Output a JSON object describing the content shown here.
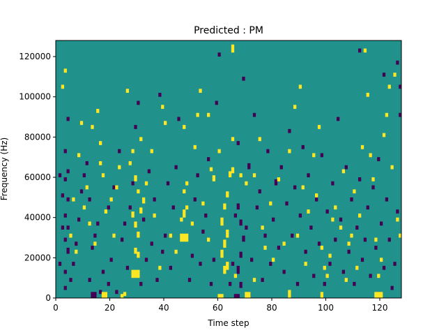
{
  "chart_data": {
    "type": "heatmap",
    "title": "Predicted : PM",
    "xlabel": "Time step",
    "ylabel": "Frequency (Hz)",
    "xlim": [
      0,
      128
    ],
    "ylim": [
      0,
      128000
    ],
    "x_ticks": [
      0,
      20,
      40,
      60,
      80,
      100,
      120
    ],
    "y_ticks": [
      0,
      20000,
      40000,
      60000,
      80000,
      100000,
      120000
    ],
    "n_time_steps": 128,
    "n_freq_bins": 128,
    "colors": {
      "background": "#21918c",
      "low": "#440154",
      "high": "#fde725"
    },
    "high_cells": [
      [
        17,
        0,
        3
      ],
      [
        18,
        0,
        3
      ],
      [
        24,
        0,
        2
      ],
      [
        25,
        1,
        2
      ],
      [
        60,
        0,
        2
      ],
      [
        61,
        0,
        2
      ],
      [
        70,
        0,
        3
      ],
      [
        71,
        0,
        3
      ],
      [
        86,
        0,
        4
      ],
      [
        98,
        0,
        3
      ],
      [
        118,
        0,
        3
      ],
      [
        119,
        0,
        3
      ],
      [
        120,
        0,
        3
      ],
      [
        28,
        10,
        4
      ],
      [
        29,
        10,
        4
      ],
      [
        30,
        10,
        4
      ],
      [
        30,
        20,
        3
      ],
      [
        29,
        22,
        3
      ],
      [
        30,
        30,
        3
      ],
      [
        29,
        35,
        3
      ],
      [
        28,
        40,
        3
      ],
      [
        31,
        42,
        3
      ],
      [
        32,
        47,
        3
      ],
      [
        30,
        52,
        2
      ],
      [
        29,
        58,
        3
      ],
      [
        46,
        28,
        4
      ],
      [
        47,
        28,
        4
      ],
      [
        48,
        28,
        4
      ],
      [
        46,
        38,
        2
      ],
      [
        47,
        40,
        4
      ],
      [
        48,
        44,
        2
      ],
      [
        47,
        52,
        2
      ],
      [
        48,
        56,
        2
      ],
      [
        62,
        12,
        4
      ],
      [
        63,
        14,
        4
      ],
      [
        61,
        20,
        4
      ],
      [
        62,
        25,
        4
      ],
      [
        63,
        30,
        4
      ],
      [
        61,
        36,
        4
      ],
      [
        62,
        44,
        3
      ],
      [
        63,
        50,
        3
      ],
      [
        57,
        63,
        2
      ],
      [
        58,
        58,
        3
      ],
      [
        64,
        60,
        3
      ],
      [
        65,
        62,
        3
      ],
      [
        70,
        56,
        2
      ],
      [
        17,
        60,
        2
      ],
      [
        18,
        42,
        2
      ],
      [
        8,
        70,
        2
      ],
      [
        9,
        86,
        2
      ],
      [
        13,
        84,
        2
      ],
      [
        15,
        92,
        2
      ],
      [
        16,
        76,
        2
      ],
      [
        22,
        54,
        2
      ],
      [
        23,
        64,
        2
      ],
      [
        27,
        66,
        2
      ],
      [
        28,
        72,
        2
      ],
      [
        31,
        78,
        2
      ],
      [
        35,
        72,
        2
      ],
      [
        39,
        94,
        2
      ],
      [
        40,
        86,
        2
      ],
      [
        47,
        84,
        2
      ],
      [
        51,
        74,
        2
      ],
      [
        52,
        90,
        2
      ],
      [
        53,
        102,
        2
      ],
      [
        56,
        90,
        2
      ],
      [
        60,
        72,
        2
      ],
      [
        65,
        122,
        4
      ],
      [
        65,
        78,
        2
      ],
      [
        68,
        60,
        2
      ],
      [
        73,
        60,
        2
      ],
      [
        75,
        78,
        2
      ],
      [
        82,
        58,
        2
      ],
      [
        86,
        72,
        2
      ],
      [
        88,
        94,
        2
      ],
      [
        90,
        104,
        2
      ],
      [
        91,
        54,
        2
      ],
      [
        95,
        70,
        2
      ],
      [
        97,
        84,
        2
      ],
      [
        98,
        24,
        2
      ],
      [
        99,
        14,
        2
      ],
      [
        101,
        20,
        2
      ],
      [
        102,
        38,
        2
      ],
      [
        105,
        34,
        2
      ],
      [
        107,
        8,
        2
      ],
      [
        109,
        30,
        2
      ],
      [
        110,
        52,
        2
      ],
      [
        112,
        40,
        2
      ],
      [
        113,
        74,
        2
      ],
      [
        114,
        122,
        2
      ],
      [
        115,
        100,
        2
      ],
      [
        116,
        70,
        2
      ],
      [
        117,
        58,
        2
      ],
      [
        118,
        28,
        2
      ],
      [
        119,
        10,
        2
      ],
      [
        120,
        18,
        2
      ],
      [
        121,
        80,
        2
      ],
      [
        122,
        90,
        2
      ],
      [
        123,
        104,
        2
      ],
      [
        124,
        64,
        2
      ],
      [
        125,
        110,
        2
      ],
      [
        126,
        38,
        2
      ],
      [
        127,
        30,
        2
      ],
      [
        2,
        104,
        2
      ],
      [
        3,
        112,
        2
      ],
      [
        5,
        30,
        2
      ],
      [
        6,
        48,
        2
      ],
      [
        7,
        22,
        2
      ],
      [
        10,
        44,
        2
      ],
      [
        11,
        54,
        2
      ],
      [
        12,
        36,
        2
      ],
      [
        14,
        26,
        2
      ],
      [
        16,
        66,
        2
      ],
      [
        20,
        48,
        2
      ],
      [
        21,
        30,
        2
      ],
      [
        26,
        102,
        2
      ],
      [
        33,
        56,
        2
      ],
      [
        36,
        40,
        2
      ],
      [
        38,
        14,
        2
      ],
      [
        42,
        30,
        2
      ],
      [
        44,
        22,
        2
      ],
      [
        50,
        36,
        2
      ],
      [
        54,
        46,
        2
      ],
      [
        56,
        28,
        2
      ],
      [
        66,
        10,
        2
      ],
      [
        76,
        34,
        2
      ],
      [
        80,
        18,
        2
      ],
      [
        84,
        26,
        2
      ],
      [
        89,
        30,
        2
      ],
      [
        93,
        42,
        2
      ],
      [
        96,
        50,
        2
      ],
      [
        100,
        10,
        2
      ],
      [
        103,
        44,
        2
      ],
      [
        106,
        62,
        2
      ],
      [
        108,
        26,
        2
      ],
      [
        111,
        14,
        2
      ],
      [
        73,
        8,
        2
      ],
      [
        77,
        24,
        2
      ],
      [
        79,
        46,
        2
      ],
      [
        92,
        16,
        2
      ]
    ],
    "low_cells": [
      [
        13,
        0,
        3
      ],
      [
        14,
        0,
        3
      ],
      [
        66,
        0,
        2
      ],
      [
        67,
        0,
        2
      ],
      [
        68,
        5,
        3
      ],
      [
        67,
        12,
        4
      ],
      [
        68,
        20,
        3
      ],
      [
        69,
        28,
        3
      ],
      [
        68,
        36,
        3
      ],
      [
        67,
        44,
        3
      ],
      [
        3,
        4,
        2
      ],
      [
        3,
        12,
        2
      ],
      [
        4,
        22,
        3
      ],
      [
        3,
        28,
        2
      ],
      [
        4,
        34,
        2
      ],
      [
        3,
        40,
        2
      ],
      [
        4,
        48,
        2
      ],
      [
        3,
        58,
        2
      ],
      [
        4,
        62,
        2
      ],
      [
        3,
        72,
        2
      ],
      [
        4,
        88,
        2
      ],
      [
        5,
        8,
        2
      ],
      [
        6,
        16,
        2
      ],
      [
        7,
        26,
        2
      ],
      [
        8,
        38,
        2
      ],
      [
        9,
        52,
        2
      ],
      [
        10,
        60,
        2
      ],
      [
        11,
        66,
        2
      ],
      [
        12,
        8,
        2
      ],
      [
        12,
        48,
        2
      ],
      [
        13,
        24,
        2
      ],
      [
        14,
        30,
        2
      ],
      [
        15,
        36,
        2
      ],
      [
        16,
        2,
        2
      ],
      [
        17,
        12,
        2
      ],
      [
        19,
        6,
        2
      ],
      [
        19,
        44,
        2
      ],
      [
        20,
        18,
        2
      ],
      [
        21,
        54,
        2
      ],
      [
        22,
        2,
        2
      ],
      [
        23,
        72,
        2
      ],
      [
        24,
        28,
        2
      ],
      [
        25,
        36,
        2
      ],
      [
        26,
        14,
        2
      ],
      [
        27,
        44,
        2
      ],
      [
        28,
        56,
        2
      ],
      [
        29,
        84,
        2
      ],
      [
        30,
        96,
        2
      ],
      [
        31,
        6,
        2
      ],
      [
        32,
        38,
        2
      ],
      [
        33,
        18,
        2
      ],
      [
        34,
        62,
        2
      ],
      [
        35,
        26,
        2
      ],
      [
        36,
        48,
        2
      ],
      [
        37,
        8,
        2
      ],
      [
        38,
        100,
        2
      ],
      [
        39,
        22,
        2
      ],
      [
        40,
        30,
        2
      ],
      [
        41,
        56,
        2
      ],
      [
        42,
        14,
        2
      ],
      [
        43,
        44,
        2
      ],
      [
        44,
        64,
        2
      ],
      [
        45,
        88,
        2
      ],
      [
        49,
        8,
        2
      ],
      [
        50,
        20,
        2
      ],
      [
        51,
        48,
        2
      ],
      [
        52,
        60,
        2
      ],
      [
        53,
        16,
        2
      ],
      [
        54,
        32,
        2
      ],
      [
        55,
        40,
        2
      ],
      [
        56,
        68,
        2
      ],
      [
        57,
        6,
        2
      ],
      [
        58,
        18,
        2
      ],
      [
        59,
        96,
        2
      ],
      [
        60,
        120,
        2
      ],
      [
        64,
        6,
        2
      ],
      [
        65,
        16,
        2
      ],
      [
        66,
        40,
        2
      ],
      [
        67,
        76,
        2
      ],
      [
        69,
        108,
        2
      ],
      [
        70,
        34,
        2
      ],
      [
        71,
        64,
        3
      ],
      [
        72,
        18,
        2
      ],
      [
        73,
        90,
        2
      ],
      [
        74,
        44,
        2
      ],
      [
        75,
        52,
        2
      ],
      [
        76,
        8,
        2
      ],
      [
        77,
        30,
        2
      ],
      [
        78,
        72,
        2
      ],
      [
        79,
        16,
        2
      ],
      [
        80,
        38,
        2
      ],
      [
        81,
        56,
        3
      ],
      [
        82,
        24,
        2
      ],
      [
        83,
        64,
        2
      ],
      [
        84,
        12,
        2
      ],
      [
        85,
        46,
        2
      ],
      [
        86,
        82,
        2
      ],
      [
        87,
        30,
        2
      ],
      [
        88,
        54,
        2
      ],
      [
        89,
        6,
        2
      ],
      [
        90,
        40,
        2
      ],
      [
        91,
        74,
        2
      ],
      [
        92,
        22,
        2
      ],
      [
        93,
        60,
        2
      ],
      [
        94,
        34,
        2
      ],
      [
        95,
        10,
        2
      ],
      [
        96,
        48,
        2
      ],
      [
        97,
        26,
        2
      ],
      [
        98,
        70,
        2
      ],
      [
        99,
        6,
        2
      ],
      [
        100,
        42,
        2
      ],
      [
        101,
        16,
        2
      ],
      [
        102,
        56,
        2
      ],
      [
        103,
        28,
        2
      ],
      [
        104,
        88,
        2
      ],
      [
        105,
        38,
        2
      ],
      [
        106,
        12,
        2
      ],
      [
        107,
        64,
        2
      ],
      [
        108,
        22,
        2
      ],
      [
        109,
        48,
        2
      ],
      [
        110,
        6,
        2
      ],
      [
        111,
        34,
        2
      ],
      [
        112,
        58,
        2
      ],
      [
        113,
        18,
        2
      ],
      [
        114,
        28,
        2
      ],
      [
        115,
        44,
        2
      ],
      [
        116,
        10,
        2
      ],
      [
        117,
        54,
        2
      ],
      [
        118,
        24,
        2
      ],
      [
        119,
        68,
        2
      ],
      [
        120,
        36,
        2
      ],
      [
        121,
        14,
        2
      ],
      [
        122,
        48,
        2
      ],
      [
        123,
        28,
        2
      ],
      [
        124,
        4,
        2
      ],
      [
        125,
        16,
        2
      ],
      [
        126,
        42,
        2
      ],
      [
        127,
        90,
        2
      ],
      [
        2,
        50,
        2
      ],
      [
        1,
        16,
        2
      ],
      [
        2,
        34,
        2
      ],
      [
        1,
        60,
        2
      ],
      [
        112,
        122,
        2
      ],
      [
        126,
        116,
        2
      ],
      [
        127,
        104,
        2
      ],
      [
        121,
        110,
        2
      ]
    ]
  }
}
